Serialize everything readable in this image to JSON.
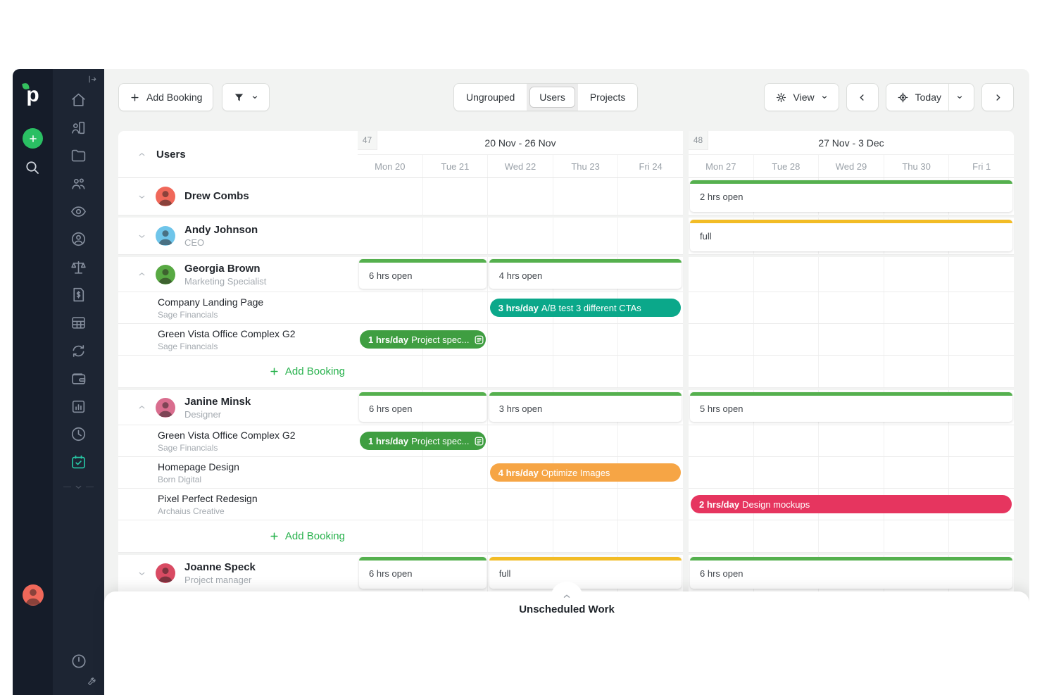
{
  "colors": {
    "green": "#55b04e",
    "yellow": "#f2bc26",
    "teal": "#0ba88a",
    "pill_green": "#3f9e41",
    "orange": "#f6a545",
    "red": "#e6355f",
    "accent": "#27b14c",
    "active_icon": "#27c7a5",
    "plus_button": "#2abf63"
  },
  "sidebar": {
    "logo_text": "p",
    "nav": [
      {
        "icon": "home"
      },
      {
        "icon": "clients"
      },
      {
        "icon": "projects-folder"
      },
      {
        "icon": "team"
      },
      {
        "icon": "watching-eye"
      },
      {
        "icon": "contact"
      },
      {
        "icon": "balance-scales"
      },
      {
        "icon": "invoices"
      },
      {
        "icon": "timesheets-table"
      },
      {
        "icon": "recurring-sync"
      },
      {
        "icon": "expenses-wallet"
      },
      {
        "icon": "reports-chart"
      },
      {
        "icon": "time-clock"
      },
      {
        "icon": "scheduler-calendar",
        "active": true
      }
    ],
    "nav_bottom": [
      {
        "icon": "timer"
      },
      {
        "icon": "wrench"
      }
    ],
    "profile_avatar_color": "#f0685a"
  },
  "toolbar": {
    "add_booking_label": "Add Booking",
    "tabs": [
      {
        "label": "Ungrouped",
        "selected": false
      },
      {
        "label": "Users",
        "selected": true
      },
      {
        "label": "Projects",
        "selected": false
      }
    ],
    "view_label": "View",
    "today_label": "Today"
  },
  "scheduler": {
    "group": {
      "label": "Users"
    },
    "add_booking_label": "Add Booking",
    "weeks": [
      {
        "number": "47",
        "range": "20 Nov - 26 Nov",
        "days": [
          "Mon 20",
          "Tue 21",
          "Wed 22",
          "Thu 23",
          "Fri 24"
        ]
      },
      {
        "number": "48",
        "range": "27 Nov - 3 Dec",
        "days": [
          "Mon 27",
          "Tue 28",
          "Wed 29",
          "Thu 30",
          "Fri 1"
        ]
      }
    ],
    "users": [
      {
        "name": "Drew Combs",
        "role": "",
        "avatar_color": "#f0685a",
        "expanded": false,
        "availability": [
          {
            "week": 1,
            "start": 0,
            "span": 5,
            "label": "2 hrs open",
            "bar": "green"
          }
        ],
        "projects": []
      },
      {
        "name": "Andy Johnson",
        "role": "CEO",
        "avatar_color": "#6fc5ea",
        "expanded": false,
        "availability": [
          {
            "week": 1,
            "start": 0,
            "span": 5,
            "label": "full",
            "bar": "yellow"
          }
        ],
        "projects": []
      },
      {
        "name": "Georgia Brown",
        "role": "Marketing Specialist",
        "avatar_color": "#58a943",
        "expanded": true,
        "availability": [
          {
            "week": 0,
            "start": 0,
            "span": 2,
            "label": "6 hrs open",
            "bar": "green"
          },
          {
            "week": 0,
            "start": 2,
            "span": 3,
            "label": "4 hrs open",
            "bar": "green"
          }
        ],
        "projects": [
          {
            "title": "Company Landing Page",
            "client": "Sage Financials",
            "bookings": [
              {
                "week": 0,
                "start": 2,
                "span": 3,
                "hours": "3 hrs/day",
                "task": "A/B test 3 different CTAs",
                "color": "teal",
                "note_icon": false
              }
            ]
          },
          {
            "title": "Green Vista Office Complex G2",
            "client": "Sage Financials",
            "bookings": [
              {
                "week": 0,
                "start": 0,
                "span": 2,
                "hours": "1 hrs/day",
                "task": "Project spec...",
                "color": "pill_green",
                "note_icon": true
              }
            ]
          }
        ]
      },
      {
        "name": "Janine Minsk",
        "role": "Designer",
        "avatar_color": "#d96d8e",
        "expanded": true,
        "availability": [
          {
            "week": 0,
            "start": 0,
            "span": 2,
            "label": "6 hrs open",
            "bar": "green"
          },
          {
            "week": 0,
            "start": 2,
            "span": 3,
            "label": "3 hrs open",
            "bar": "green"
          },
          {
            "week": 1,
            "start": 0,
            "span": 5,
            "label": "5 hrs open",
            "bar": "green"
          }
        ],
        "projects": [
          {
            "title": "Green Vista Office Complex G2",
            "client": "Sage Financials",
            "bookings": [
              {
                "week": 0,
                "start": 0,
                "span": 2,
                "hours": "1 hrs/day",
                "task": "Project spec...",
                "color": "pill_green",
                "note_icon": true
              }
            ]
          },
          {
            "title": "Homepage Design",
            "client": "Born Digital",
            "bookings": [
              {
                "week": 0,
                "start": 2,
                "span": 3,
                "hours": "4 hrs/day",
                "task": "Optimize Images",
                "color": "orange",
                "note_icon": false
              }
            ]
          },
          {
            "title": "Pixel Perfect Redesign",
            "client": "Archaius Creative",
            "bookings": [
              {
                "week": 1,
                "start": 0,
                "span": 5,
                "hours": "2 hrs/day",
                "task": "Design mockups",
                "color": "red",
                "note_icon": false
              }
            ]
          }
        ]
      },
      {
        "name": "Joanne Speck",
        "role": "Project manager",
        "avatar_color": "#d94b63",
        "expanded": false,
        "availability": [
          {
            "week": 0,
            "start": 0,
            "span": 2,
            "label": "6 hrs open",
            "bar": "green"
          },
          {
            "week": 0,
            "start": 2,
            "span": 3,
            "label": "full",
            "bar": "yellow"
          },
          {
            "week": 1,
            "start": 0,
            "span": 5,
            "label": "6 hrs open",
            "bar": "green"
          }
        ],
        "projects": []
      }
    ]
  },
  "unscheduled": {
    "title": "Unscheduled Work"
  }
}
